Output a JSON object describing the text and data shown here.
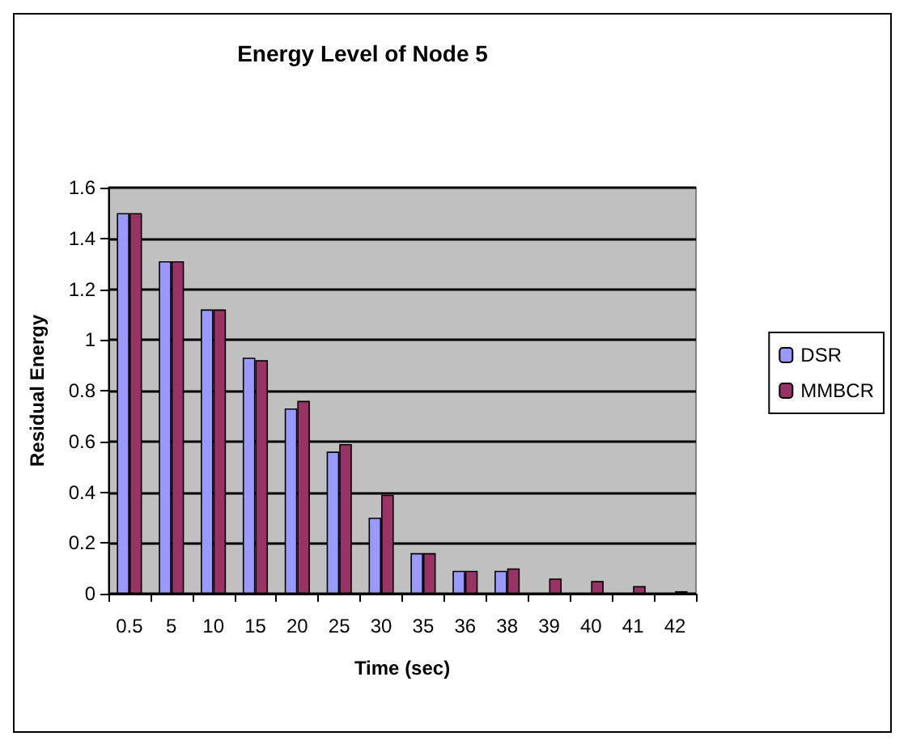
{
  "chart_data": {
    "type": "bar",
    "title": "Energy Level of Node 5",
    "xlabel": "Time (sec)",
    "ylabel": "Residual Energy",
    "categories": [
      "0.5",
      "5",
      "10",
      "15",
      "20",
      "25",
      "30",
      "35",
      "36",
      "38",
      "39",
      "40",
      "41",
      "42"
    ],
    "series": [
      {
        "name": "DSR",
        "color": "#9999ff",
        "values": [
          1.5,
          1.31,
          1.12,
          0.93,
          0.73,
          0.56,
          0.3,
          0.16,
          0.09,
          0.09,
          null,
          null,
          null,
          null
        ]
      },
      {
        "name": "MMBCR",
        "color": "#993366",
        "values": [
          1.5,
          1.31,
          1.12,
          0.92,
          0.76,
          0.59,
          0.39,
          0.16,
          0.09,
          0.1,
          0.06,
          0.05,
          0.03,
          0.01
        ]
      }
    ],
    "ylim": [
      0,
      1.6
    ],
    "yticks": [
      0,
      0.2,
      0.4,
      0.6,
      0.8,
      1,
      1.2,
      1.4,
      1.6
    ],
    "grid": "y",
    "legend": "right"
  }
}
